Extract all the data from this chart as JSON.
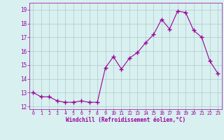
{
  "x": [
    0,
    1,
    2,
    3,
    4,
    5,
    6,
    7,
    8,
    9,
    10,
    11,
    12,
    13,
    14,
    15,
    16,
    17,
    18,
    19,
    20,
    21,
    22,
    23
  ],
  "y": [
    13.0,
    12.7,
    12.7,
    12.4,
    12.3,
    12.3,
    12.4,
    12.3,
    12.3,
    14.8,
    15.6,
    14.7,
    15.5,
    15.9,
    16.6,
    17.2,
    18.3,
    17.6,
    18.9,
    18.8,
    17.5,
    17.0,
    15.3,
    14.4
  ],
  "line_color": "#990099",
  "marker": "+",
  "marker_size": 4,
  "bg_color": "#d8f0f0",
  "grid_color": "#b0c8c8",
  "xlabel": "Windchill (Refroidissement éolien,°C)",
  "ylabel_ticks": [
    12,
    13,
    14,
    15,
    16,
    17,
    18,
    19
  ],
  "xlabel_ticks": [
    0,
    1,
    2,
    3,
    4,
    5,
    6,
    7,
    8,
    9,
    10,
    11,
    12,
    13,
    14,
    15,
    16,
    17,
    18,
    19,
    20,
    21,
    22,
    23
  ],
  "ylim": [
    11.8,
    19.5
  ],
  "xlim": [
    -0.5,
    23.5
  ],
  "axis_color": "#990099",
  "tick_color": "#990099",
  "label_color": "#990099"
}
